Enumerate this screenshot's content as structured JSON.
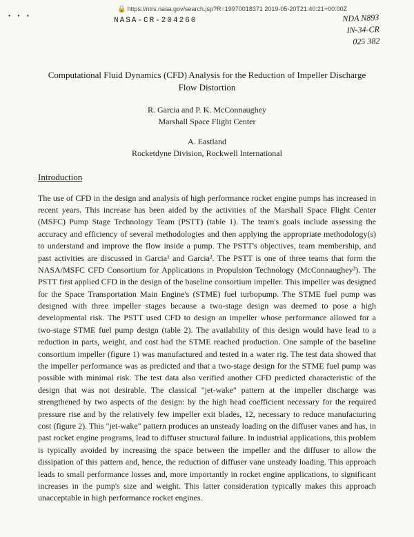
{
  "url": "https://ntrs.nasa.gov/search.jsp?R=19970018371 2019-05-20T21:40:21+00:00Z",
  "dots": "•  •  •",
  "nasa_cr": "NASA-CR-204260",
  "handwritten_lines": "NDA  N893\nIN-34-CR\n025 382",
  "title": "Computational Fluid Dynamics (CFD) Analysis for the Reduction of Impeller Discharge Flow Distortion",
  "authors1_names": "R. Garcia and P. K. McConnaughey",
  "authors1_affil": "Marshall Space Flight Center",
  "authors2_names": "A. Eastland",
  "authors2_affil": "Rocketdyne Division, Rockwell International",
  "section": "Introduction",
  "body": "The use of CFD in the design and analysis of high performance rocket engine pumps has increased in recent years. This increase has been aided by the activities of the Marshall Space Flight Center (MSFC) Pump Stage Technology Team (PSTT) (table 1). The team's goals include assessing the accuracy and efficiency of several methodologies and then applying the appropriate methodology(s) to understand and improve the flow inside a pump. The PSTT's objectives, team membership, and past activities are discussed in Garcia¹ and Garcia². The PSTT is one of three teams that form the NASA/MSFC CFD Consortium for Applications in Propulsion Technology (McConnaughey³). The PSTT first applied CFD in the design of the baseline consortium impeller. This impeller was designed for the Space Transportation Main Engine's (STME) fuel turbopump. The STME fuel pump was designed with three impeller stages because a two-stage design was deemed to pose a high developmental risk. The PSTT used CFD to design an impeller whose performance allowed for a two-stage STME fuel pump design (table 2). The availability of this design would have lead to a reduction in parts, weight, and cost had the STME reached production. One sample of the baseline consortium impeller (figure 1) was manufactured and tested in a water rig. The test data showed that the impeller performance was as predicted and that a two-stage design for the STME fuel pump was possible with minimal risk. The test data also verified another CFD predicted characteristic of the design that was not desirable. The classical \"jet-wake\" pattern at the impeller discharge was strengthened by two aspects of the design: by the high head coefficient necessary for the required pressure rise and by the relatively few impeller exit blades, 12, necessary to reduce manufacturing cost (figure 2). This \"jet-wake\" pattern produces an unsteady loading on the diffuser vanes and has, in past rocket engine programs, lead to diffuser structural failure. In industrial applications, this problem is typically avoided by increasing the space between the impeller and the diffuser to allow the dissipation of this pattern and, hence, the reduction of diffuser vane unsteady loading. This approach leads to small performance losses and, more importantly in rocket engine applications, to significant increases in the pump's size and weight. This latter consideration typically makes this approach unacceptable in high performance rocket engines."
}
